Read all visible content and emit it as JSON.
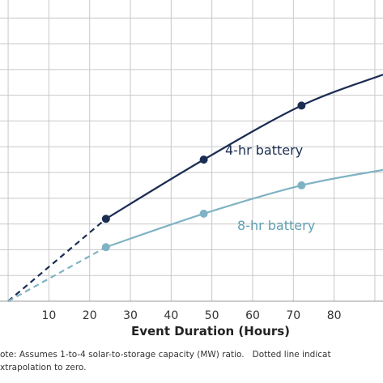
{
  "chart_data": {
    "type": "line",
    "xlabel": "Event Duration (Hours)",
    "xlim": [
      -2,
      92
    ],
    "ylim": [
      0,
      11.7
    ],
    "grid": true,
    "x_ticks": [
      "10",
      "20",
      "30",
      "40",
      "50",
      "60",
      "70",
      "80"
    ],
    "x_tick_values": [
      10,
      20,
      30,
      40,
      50,
      60,
      70,
      80
    ],
    "series": [
      {
        "name": "4-hr battery",
        "color": "#1b2d52",
        "x": [
          24,
          48,
          72,
          92
        ],
        "y": [
          3.2,
          5.5,
          7.6,
          8.8
        ],
        "markers_x": [
          24,
          48,
          72
        ],
        "extrapolation": {
          "x": [
            0,
            24
          ],
          "y": [
            0,
            3.2
          ],
          "style": "dashed"
        }
      },
      {
        "name": "8-hr battery",
        "color": "#7fb3c3",
        "x": [
          24,
          48,
          72,
          92
        ],
        "y": [
          2.1,
          3.4,
          4.5,
          5.1
        ],
        "markers_x": [
          24,
          48,
          72
        ],
        "extrapolation": {
          "x": [
            0,
            24
          ],
          "y": [
            0,
            2.1
          ],
          "style": "dashed"
        }
      }
    ]
  },
  "note_line1": "ote: Assumes 1-to-4 solar-to-storage capacity (MW) ratio.   Dotted line indicat",
  "note_line2": "xtrapolation to zero."
}
